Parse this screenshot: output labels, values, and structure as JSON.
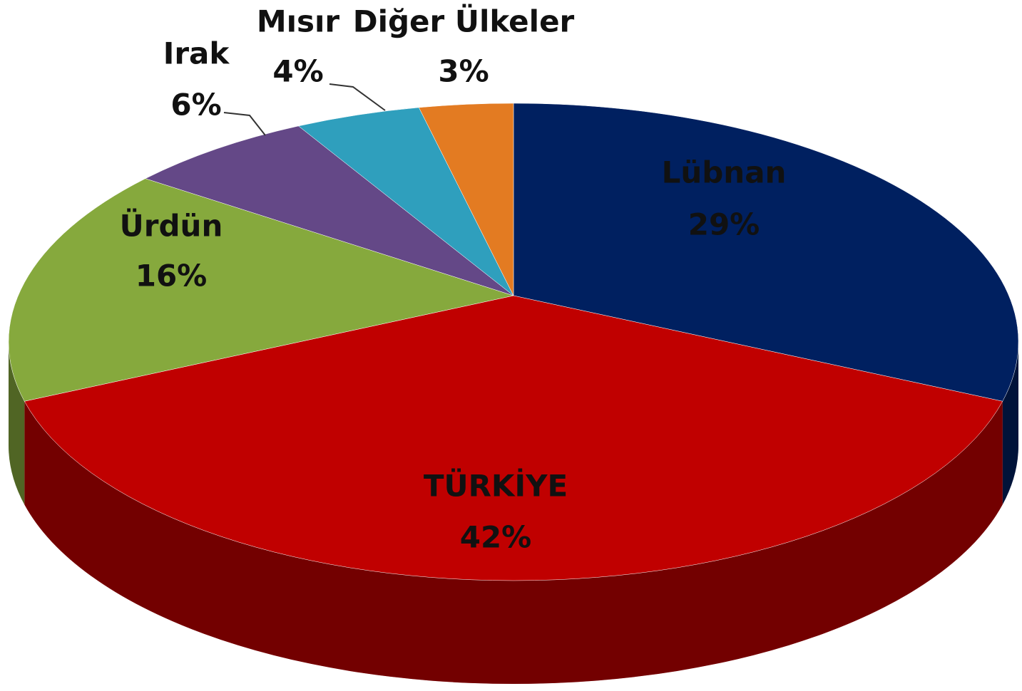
{
  "chart_data": {
    "type": "pie",
    "categories": [
      "Lübnan",
      "TÜRKİYE",
      "Ürdün",
      "Irak",
      "Mısır",
      "Diğer Ülkeler"
    ],
    "values": [
      29,
      42,
      16,
      6,
      4,
      3
    ],
    "value_labels": [
      "29%",
      "42%",
      "16%",
      "6%",
      "4%",
      "3%"
    ],
    "colors": [
      "#002060",
      "#c00000",
      "#86a93d",
      "#644887",
      "#2f9fbd",
      "#e37b22"
    ]
  }
}
